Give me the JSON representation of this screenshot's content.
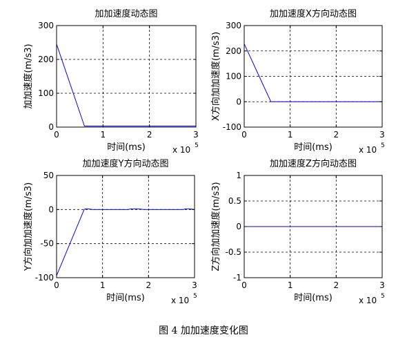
{
  "figure_caption": "图 4  加加速度变化图",
  "chart_data": [
    {
      "type": "line",
      "title": "加加速度动态图",
      "xlabel": "时间(ms)",
      "ylabel": "加加速度(m/s3)",
      "xlim": [
        0,
        3
      ],
      "ylim": [
        0,
        300
      ],
      "xticks": [
        "0",
        "1",
        "2",
        "3"
      ],
      "yticks": [
        "0",
        "100",
        "200",
        "300"
      ],
      "x_exponent": "x 10",
      "x_exponent_power": "5",
      "grid": true,
      "series": [
        {
          "color": "#0000ff",
          "x": [
            0,
            0.6,
            3
          ],
          "y": [
            245,
            3,
            3
          ]
        }
      ]
    },
    {
      "type": "line",
      "title": "加加速度X方向动态图",
      "xlabel": "时间(ms)",
      "ylabel": "X方向加加速度(m/s3)",
      "xlim": [
        0,
        3
      ],
      "ylim": [
        -100,
        300
      ],
      "xticks": [
        "0",
        "1",
        "2",
        "3"
      ],
      "yticks": [
        "-100",
        "0",
        "100",
        "200",
        "300"
      ],
      "x_exponent": "x 10",
      "x_exponent_power": "5",
      "grid": true,
      "series": [
        {
          "color": "#0000ff",
          "x": [
            0,
            0.58,
            3
          ],
          "y": [
            228,
            0,
            0
          ]
        }
      ]
    },
    {
      "type": "line",
      "title": "加加速度Y方向动态图",
      "xlabel": "时间(ms)",
      "ylabel": "Y方向加加速度(m/s3)",
      "xlim": [
        0,
        3
      ],
      "ylim": [
        -100,
        50
      ],
      "xticks": [
        "0",
        "1",
        "2",
        "3"
      ],
      "yticks": [
        "-100",
        "-50",
        "0",
        "50"
      ],
      "x_exponent": "x 10",
      "x_exponent_power": "5",
      "grid": true,
      "series": [
        {
          "color": "#0000ff",
          "x": [
            0,
            0.6,
            0.62,
            0.7,
            0.78,
            1.0,
            1.55,
            1.62,
            1.7,
            1.78,
            1.9,
            2.75,
            2.8,
            2.9,
            3.0
          ],
          "y": [
            -97,
            0,
            1,
            1,
            0,
            0,
            0,
            1,
            1,
            1,
            0,
            0,
            1,
            1,
            0
          ]
        }
      ]
    },
    {
      "type": "line",
      "title": "加加速度Z方向动态图",
      "xlabel": "时间(ms)",
      "ylabel": "Z方向加加速度(m/s3)",
      "xlim": [
        0,
        3
      ],
      "ylim": [
        -1,
        1
      ],
      "xticks": [
        "0",
        "1",
        "2",
        "3"
      ],
      "yticks": [
        "-1",
        "-0.5",
        "0",
        "0.5",
        "1"
      ],
      "x_exponent": "x 10",
      "x_exponent_power": "5",
      "grid": true,
      "series": [
        {
          "color": "#0000ff",
          "x": [
            0,
            3
          ],
          "y": [
            0,
            0
          ]
        }
      ]
    }
  ]
}
